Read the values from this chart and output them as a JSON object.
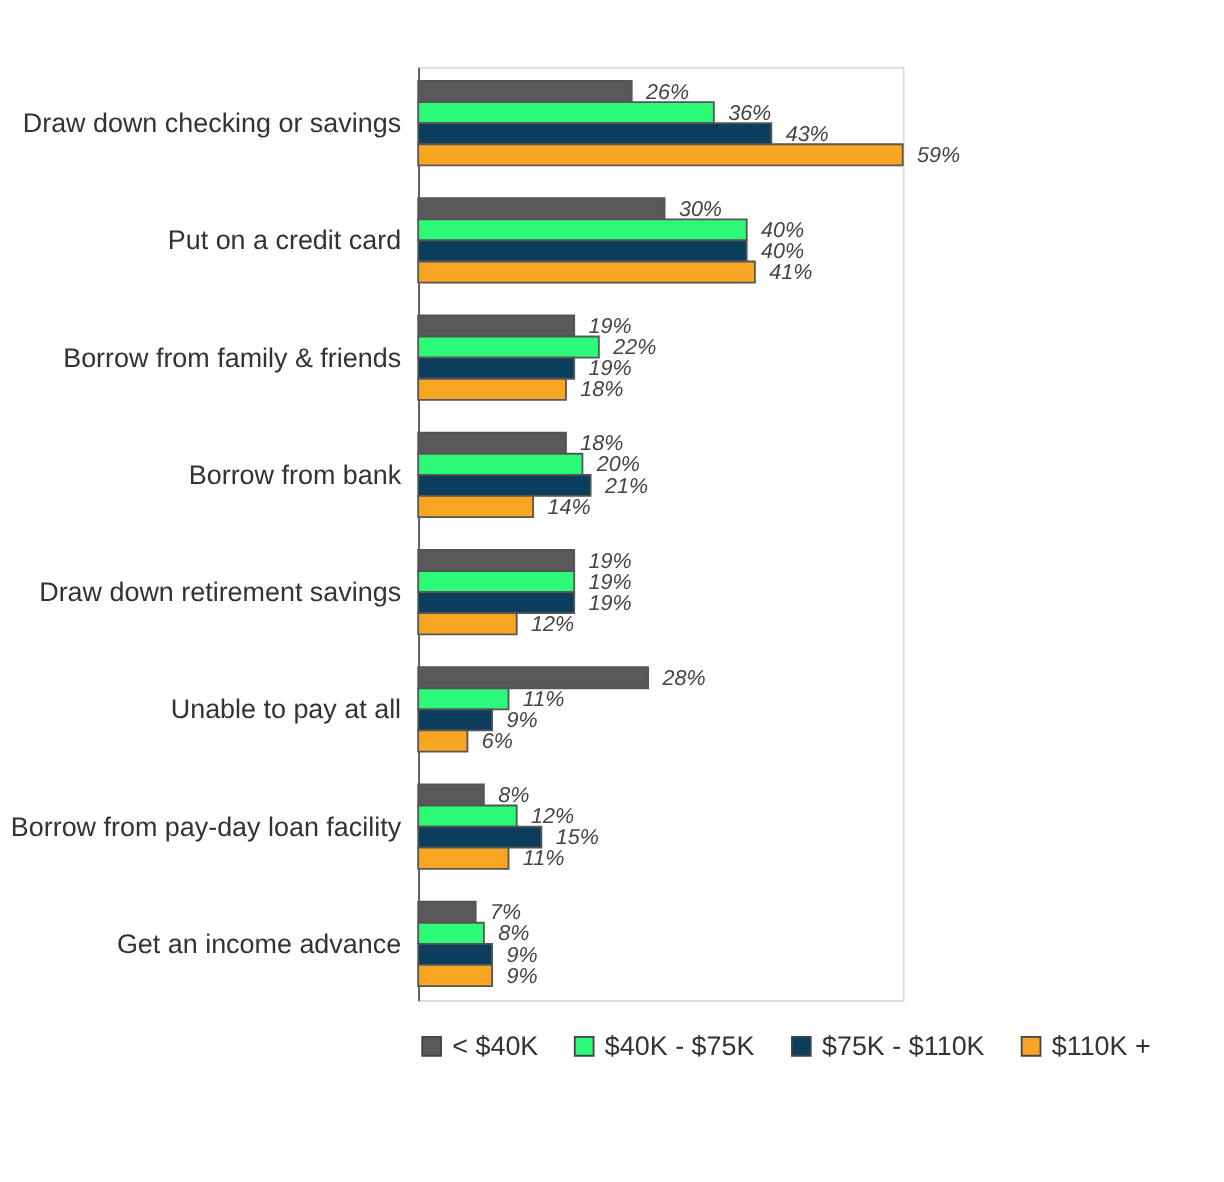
{
  "chart_data": {
    "type": "bar",
    "orientation": "horizontal",
    "legend": "bottom",
    "grid": false,
    "tick_labels": "y",
    "categories": [
      "Draw down checking or savings",
      "Put on a credit card",
      "Borrow from family & friends",
      "Borrow from bank",
      "Draw down retirement savings",
      "Unable to pay at all",
      "Borrow from pay-day loan facility",
      "Get an income advance"
    ],
    "series": [
      {
        "name": "< $40K",
        "color": "#595959",
        "values": [
          26,
          30,
          19,
          18,
          19,
          28,
          8,
          7
        ],
        "value_labels": [
          "26%",
          "30%",
          "19%",
          "18%",
          "19%",
          "28%",
          "8%",
          "7%"
        ]
      },
      {
        "name": "$40K - $75K",
        "color": "#2efa7a",
        "values": [
          36,
          40,
          22,
          20,
          19,
          11,
          12,
          8
        ],
        "value_labels": [
          "36%",
          "40%",
          "22%",
          "20%",
          "19%",
          "11%",
          "12%",
          "8%"
        ]
      },
      {
        "name": "$75K - $110K",
        "color": "#0b3d5c",
        "values": [
          43,
          40,
          19,
          21,
          19,
          9,
          15,
          9
        ],
        "value_labels": [
          "43%",
          "40%",
          "19%",
          "21%",
          "19%",
          "9%",
          "15%",
          "9%"
        ]
      },
      {
        "name": "$110K +",
        "color": "#f8a524",
        "values": [
          59,
          41,
          18,
          14,
          12,
          6,
          11,
          9
        ],
        "value_labels": [
          "59%",
          "41%",
          "18%",
          "14%",
          "12%",
          "6%",
          "11%",
          "9%"
        ]
      }
    ]
  }
}
